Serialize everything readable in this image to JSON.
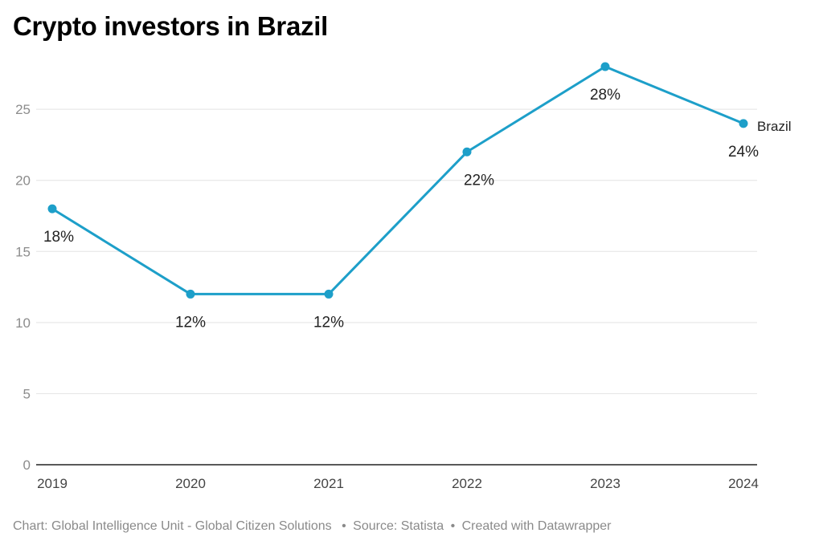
{
  "chart_data": {
    "type": "line",
    "title": "Crypto investors in Brazil",
    "categories": [
      "2019",
      "2020",
      "2021",
      "2022",
      "2023",
      "2024"
    ],
    "series": [
      {
        "name": "Brazil",
        "values": [
          18,
          12,
          12,
          22,
          28,
          24
        ],
        "data_labels": [
          "18%",
          "12%",
          "12%",
          "22%",
          "28%",
          "24%"
        ],
        "color": "#1d9fc9"
      }
    ],
    "y_ticks": [
      "0",
      "5",
      "10",
      "15",
      "20",
      "25"
    ],
    "ylim": [
      0,
      28
    ],
    "grid": true,
    "legend": "direct label at line end"
  },
  "footer": {
    "credit": "Chart: Global Intelligence Unit - Global Citizen Solutions",
    "source": "Source: Statista",
    "tool": "Created with Datawrapper",
    "separator": "•"
  },
  "colors": {
    "line": "#1d9fc9",
    "grid": "#e3e3e3",
    "axis": "#222222"
  }
}
